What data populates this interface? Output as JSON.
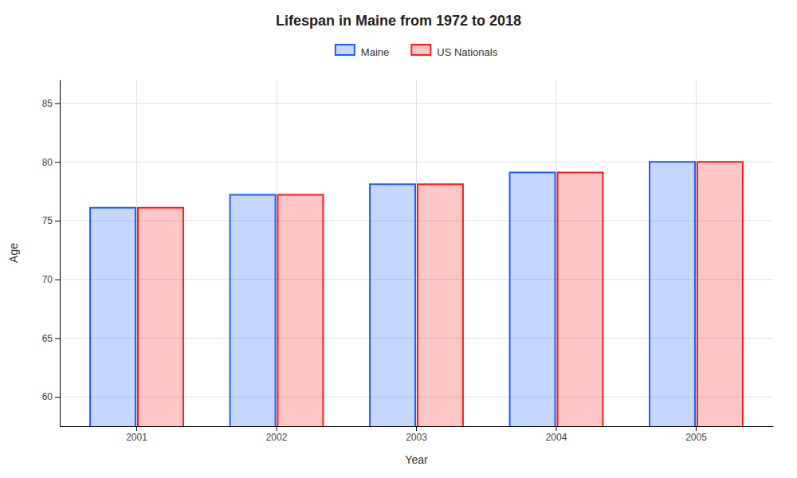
{
  "chart_data": {
    "type": "bar",
    "title": "Lifespan in Maine from 1972 to 2018",
    "xlabel": "Year",
    "ylabel": "Age",
    "categories": [
      "2001",
      "2002",
      "2003",
      "2004",
      "2005"
    ],
    "series": [
      {
        "name": "Maine",
        "color": "#1a5fff",
        "values": [
          76.1,
          77.2,
          78.1,
          79.1,
          80.0
        ]
      },
      {
        "name": "US Nationals",
        "color": "#ff1a1a",
        "values": [
          76.1,
          77.2,
          78.1,
          79.1,
          80.0
        ]
      }
    ],
    "ylim": [
      57.5,
      87
    ],
    "yticks": [
      60,
      65,
      70,
      75,
      80,
      85
    ],
    "grid": true,
    "legend": "top"
  }
}
